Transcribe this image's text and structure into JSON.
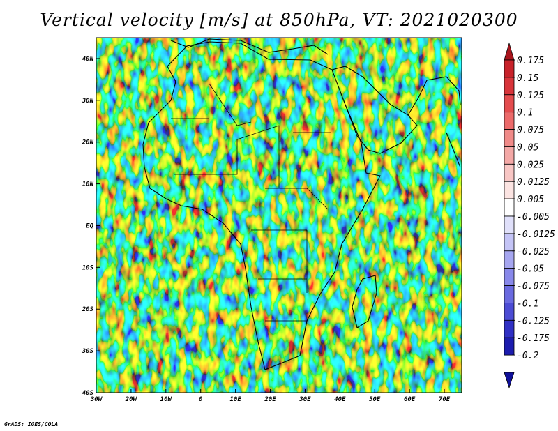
{
  "title": "Vertical velocity [m/s] at 850hPa, VT: 2021020300",
  "credit": "GrADS: IGES/COLA",
  "chart_data": {
    "type": "heatmap",
    "title": "Vertical velocity [m/s] at 850hPa, VT: 2021020300",
    "variable": "Vertical velocity",
    "units": "m/s",
    "level": "850hPa",
    "valid_time": "2021020300",
    "x_range": [
      -30,
      75
    ],
    "y_range": [
      -40,
      45
    ],
    "x_ticks": [
      {
        "value": -30,
        "label": "30W"
      },
      {
        "value": -20,
        "label": "20W"
      },
      {
        "value": -10,
        "label": "10W"
      },
      {
        "value": 0,
        "label": "0"
      },
      {
        "value": 10,
        "label": "10E"
      },
      {
        "value": 20,
        "label": "20E"
      },
      {
        "value": 30,
        "label": "30E"
      },
      {
        "value": 40,
        "label": "40E"
      },
      {
        "value": 50,
        "label": "50E"
      },
      {
        "value": 60,
        "label": "60E"
      },
      {
        "value": 70,
        "label": "70E"
      }
    ],
    "y_ticks": [
      {
        "value": 40,
        "label": "40N"
      },
      {
        "value": 30,
        "label": "30N"
      },
      {
        "value": 20,
        "label": "20N"
      },
      {
        "value": 10,
        "label": "10N"
      },
      {
        "value": 0,
        "label": "EQ"
      },
      {
        "value": -10,
        "label": "10S"
      },
      {
        "value": -20,
        "label": "20S"
      },
      {
        "value": -30,
        "label": "30S"
      },
      {
        "value": -40,
        "label": "40S"
      }
    ],
    "colorbar": {
      "labels": [
        "0.175",
        "0.15",
        "0.125",
        "0.1",
        "0.075",
        "0.05",
        "0.025",
        "0.0125",
        "0.005",
        "-0.005",
        "-0.0125",
        "-0.025",
        "-0.05",
        "-0.075",
        "-0.1",
        "-0.125",
        "-0.175",
        "-0.2"
      ],
      "colors": [
        "#a8141c",
        "#c8222a",
        "#d8343a",
        "#e44c4e",
        "#ec6a6a",
        "#f08a88",
        "#f4a8a6",
        "#f8c6c4",
        "#fce4e2",
        "#ffffff",
        "#e0e0fa",
        "#c4c4f6",
        "#a6a6f0",
        "#8888ea",
        "#6a6ae0",
        "#4c4cd4",
        "#3030c4",
        "#1c1cae",
        "#10109a"
      ]
    }
  }
}
